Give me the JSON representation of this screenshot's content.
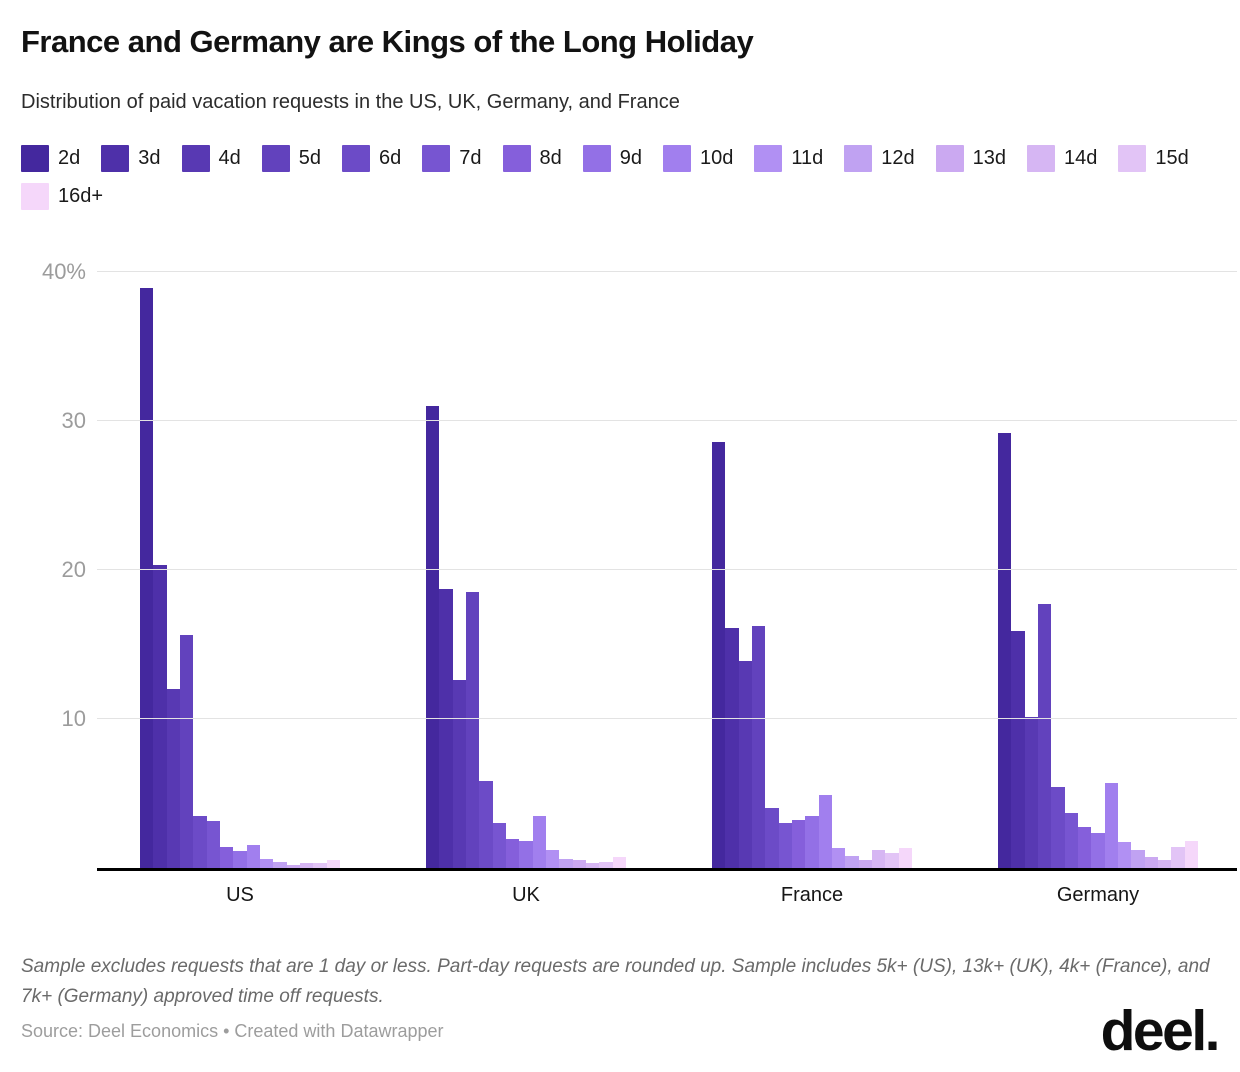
{
  "header": {
    "title": "France and Germany are Kings of the Long Holiday",
    "subtitle": "Distribution of paid vacation requests in the US, UK, Germany, and France"
  },
  "legend": {
    "position": "top",
    "items": [
      {
        "label": "2d",
        "color": "#44289e"
      },
      {
        "label": "3d",
        "color": "#4e30a9"
      },
      {
        "label": "4d",
        "color": "#5839b3"
      },
      {
        "label": "5d",
        "color": "#6242bd"
      },
      {
        "label": "6d",
        "color": "#6c4bc7"
      },
      {
        "label": "7d",
        "color": "#7755d1"
      },
      {
        "label": "8d",
        "color": "#855fdb"
      },
      {
        "label": "9d",
        "color": "#9370e6"
      },
      {
        "label": "10d",
        "color": "#a17fee"
      },
      {
        "label": "11d",
        "color": "#b190f3"
      },
      {
        "label": "12d",
        "color": "#c0a2f2"
      },
      {
        "label": "13d",
        "color": "#cba9f1"
      },
      {
        "label": "14d",
        "color": "#d6b6f3"
      },
      {
        "label": "15d",
        "color": "#e2c4f6"
      },
      {
        "label": "16d+",
        "color": "#f5d7fa"
      }
    ]
  },
  "chart_data": {
    "type": "bar",
    "title": "France and Germany are Kings of the Long Holiday",
    "subtitle": "Distribution of paid vacation requests in the US, UK, Germany, and France",
    "unit": "percent",
    "grid": true,
    "legend_position": "top",
    "categories": [
      "2d",
      "3d",
      "4d",
      "5d",
      "6d",
      "7d",
      "8d",
      "9d",
      "10d",
      "11d",
      "12d",
      "13d",
      "14d",
      "15d",
      "16d+"
    ],
    "groups": [
      "US",
      "UK",
      "France",
      "Germany"
    ],
    "series": [
      {
        "name": "US",
        "values": [
          38.9,
          20.3,
          12.0,
          15.6,
          3.5,
          3.1,
          1.4,
          1.1,
          1.5,
          0.6,
          0.4,
          0.2,
          0.3,
          0.3,
          0.5
        ]
      },
      {
        "name": "UK",
        "values": [
          31.0,
          18.7,
          12.6,
          18.5,
          5.8,
          3.0,
          1.9,
          1.8,
          3.5,
          1.2,
          0.6,
          0.5,
          0.3,
          0.4,
          0.7
        ]
      },
      {
        "name": "France",
        "values": [
          28.6,
          16.1,
          13.9,
          16.2,
          4.0,
          3.0,
          3.2,
          3.5,
          4.9,
          1.3,
          0.8,
          0.5,
          1.2,
          1.0,
          1.3
        ]
      },
      {
        "name": "Germany",
        "values": [
          29.2,
          15.9,
          10.1,
          17.7,
          5.4,
          3.7,
          2.7,
          2.3,
          5.7,
          1.7,
          1.2,
          0.7,
          0.5,
          1.4,
          1.8
        ]
      }
    ],
    "ylim": [
      0,
      40
    ],
    "y_ticks": [
      {
        "value": 40,
        "label": "40%"
      },
      {
        "value": 30,
        "label": "30"
      },
      {
        "value": 20,
        "label": "20"
      },
      {
        "value": 10,
        "label": "10"
      }
    ],
    "xlabel": "",
    "ylabel": ""
  },
  "footer": {
    "note": "Sample excludes requests that are 1 day or less. Part-day requests are rounded up. Sample includes 5k+ (US), 13k+ (UK), 4k+ (France), and 7k+ (Germany) approved time off requests.",
    "source": "Source: Deel Economics • Created with Datawrapper",
    "logo": "deel."
  }
}
